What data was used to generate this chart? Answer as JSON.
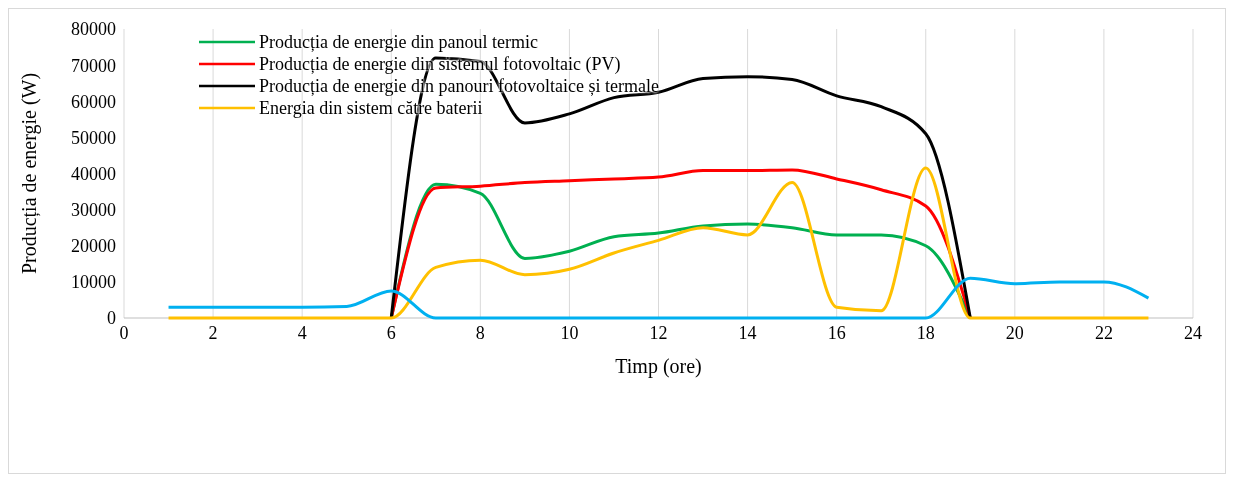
{
  "chart_data": {
    "type": "line",
    "xlabel": "Timp (ore)",
    "ylabel": "Producția de energie (W)",
    "x": [
      1,
      2,
      3,
      4,
      5,
      6,
      7,
      8,
      9,
      10,
      11,
      12,
      13,
      14,
      15,
      16,
      17,
      18,
      19,
      20,
      21,
      22,
      23
    ],
    "xlim": [
      0,
      24
    ],
    "xticks": [
      0,
      2,
      4,
      6,
      8,
      10,
      12,
      14,
      16,
      18,
      20,
      22,
      24
    ],
    "ylim": [
      0,
      80000
    ],
    "yticks": [
      0,
      10000,
      20000,
      30000,
      40000,
      50000,
      60000,
      70000,
      80000
    ],
    "grid": "x",
    "legend": "top left",
    "marker": "none",
    "line_style": "solid",
    "series": [
      {
        "name": "Producția de energie din panoul termic",
        "color": "#00b050",
        "values": [
          null,
          null,
          null,
          null,
          null,
          0,
          37000,
          34500,
          16500,
          18500,
          22500,
          23500,
          25500,
          26000,
          25000,
          23000,
          23000,
          20000,
          0,
          null,
          null,
          null,
          null
        ]
      },
      {
        "name": "Producția de energie din sistemul fotovoltaic (PV)",
        "color": "#ff0000",
        "values": [
          null,
          null,
          null,
          null,
          null,
          0,
          36000,
          36500,
          37500,
          38000,
          38500,
          39000,
          40800,
          40800,
          41000,
          38500,
          35500,
          31000,
          0,
          null,
          null,
          null,
          null
        ]
      },
      {
        "name": "Producția de energie din panouri fotovoltaice și termale",
        "color": "#000000",
        "values": [
          null,
          null,
          null,
          null,
          null,
          0,
          72000,
          71000,
          54000,
          56500,
          61000,
          62500,
          66300,
          66800,
          66000,
          61500,
          58500,
          51000,
          0,
          null,
          null,
          null,
          null
        ]
      },
      {
        "name": "Energia din sistem către baterii",
        "color": "#ffc000",
        "values": [
          0,
          0,
          0,
          0,
          0,
          0,
          14000,
          16000,
          12000,
          13500,
          18000,
          21500,
          25000,
          23000,
          37500,
          3000,
          2000,
          41500,
          0,
          0,
          0,
          0,
          0
        ]
      },
      {
        "color": "#00b0f0",
        "values": [
          3000,
          3000,
          3000,
          3000,
          3200,
          7500,
          0,
          0,
          0,
          0,
          0,
          0,
          0,
          0,
          0,
          0,
          0,
          0,
          11000,
          9500,
          10000,
          10000,
          5500
        ]
      }
    ]
  }
}
